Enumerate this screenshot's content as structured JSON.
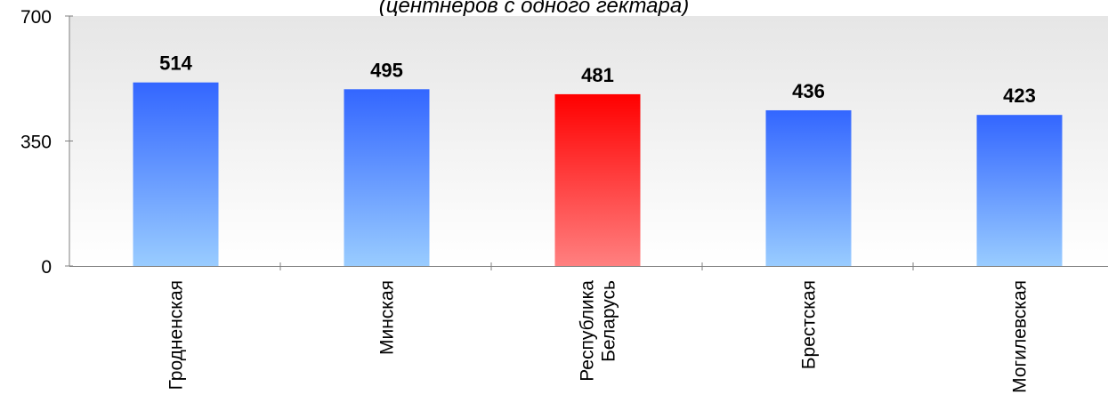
{
  "chart_data": {
    "type": "bar",
    "subtitle": "(центнеров с одного гектара)",
    "categories": [
      [
        "Гродненская"
      ],
      [
        "Минская"
      ],
      [
        "Республика",
        "Беларусь"
      ],
      [
        "Брестская"
      ],
      [
        "Могилевская"
      ]
    ],
    "values": [
      514,
      495,
      481,
      436,
      423
    ],
    "data_labels": [
      "514",
      "495",
      "481",
      "436",
      "423"
    ],
    "highlight_index": 2,
    "ylim": [
      0,
      700
    ],
    "yticks": [
      0,
      350,
      700
    ],
    "ytick_labels": [
      "0",
      "350",
      "700"
    ],
    "grid": false,
    "legend": "none",
    "colors": {
      "bar_top": "#3366ff",
      "bar_bottom": "#99ccff",
      "highlight_top": "#ff0000",
      "highlight_bottom": "#ff8080",
      "plot_bg_top": "#e6e6e6",
      "plot_bg_bottom": "#ffffff",
      "axis": "#808080"
    }
  }
}
